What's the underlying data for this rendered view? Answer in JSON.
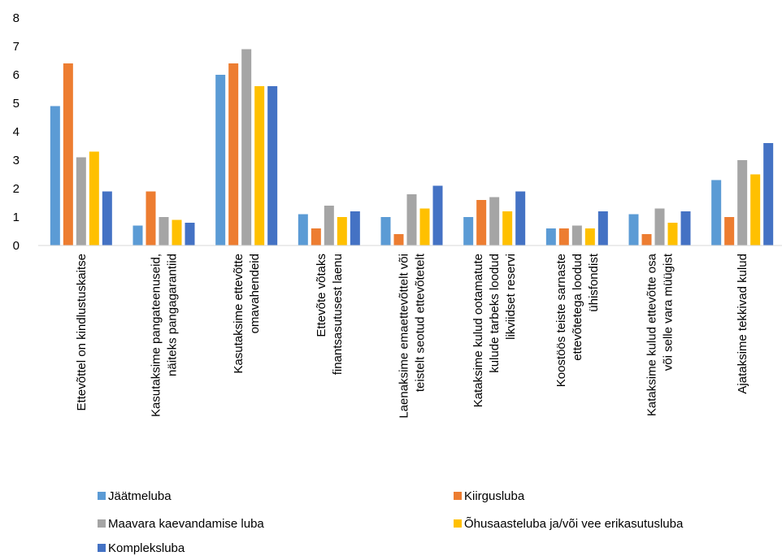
{
  "chart_data": {
    "type": "bar",
    "title": "",
    "xlabel": "",
    "ylabel": "",
    "ylim": [
      0,
      8
    ],
    "yticks": [
      0,
      1,
      2,
      3,
      4,
      5,
      6,
      7,
      8
    ],
    "grid": false,
    "legend_position": "bottom",
    "categories": [
      [
        "Ettevõttel on kindlustuskaitse"
      ],
      [
        "Kasutaksime pangateenuseid,",
        "näiteks pangagarantiid"
      ],
      [
        "Kasutaksime ettevõtte",
        "omavahendeid"
      ],
      [
        "Ettevõte võtaks",
        "finantsasutusest laenu"
      ],
      [
        "Laenaksime emaettevõttelt või",
        "teistelt seotud ettevõtetelt"
      ],
      [
        "Kataksime kulud ootamatute",
        "kulude tarbeks loodud",
        "likviidset reservi"
      ],
      [
        "Koostöös teiste sarnaste",
        "ettevõtetega loodud",
        "ühisfondist"
      ],
      [
        "Kataksime kulud ettevõtte osa",
        "või selle vara müügist"
      ],
      [
        "Ajataksime tekkivad kulud"
      ]
    ],
    "series": [
      {
        "name": "Jäätmeluba",
        "color": "#5B9BD5",
        "values": [
          4.9,
          0.7,
          6.0,
          1.1,
          1.0,
          1.0,
          0.6,
          1.1,
          2.3
        ]
      },
      {
        "name": "Kiirgusluba",
        "color": "#ED7D31",
        "values": [
          6.4,
          1.9,
          6.4,
          0.6,
          0.4,
          1.6,
          0.6,
          0.4,
          1.0
        ]
      },
      {
        "name": "Maavara kaevandamise luba",
        "color": "#A5A5A5",
        "values": [
          3.1,
          1.0,
          6.9,
          1.4,
          1.8,
          1.7,
          0.7,
          1.3,
          3.0
        ]
      },
      {
        "name": "Õhusaasteluba ja/või vee erikasutusluba",
        "color": "#FFC000",
        "values": [
          3.3,
          0.9,
          5.6,
          1.0,
          1.3,
          1.2,
          0.6,
          0.8,
          2.5
        ]
      },
      {
        "name": "Kompleksluba",
        "color": "#4472C4",
        "values": [
          1.9,
          0.8,
          5.6,
          1.2,
          2.1,
          1.9,
          1.2,
          1.2,
          3.6
        ]
      }
    ]
  }
}
